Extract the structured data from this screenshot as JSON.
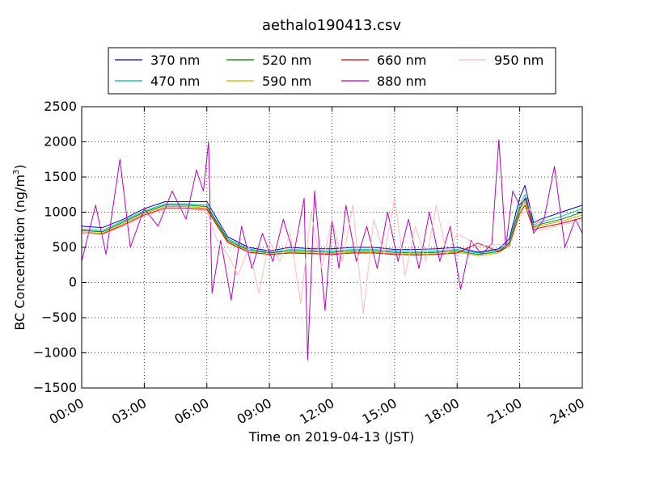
{
  "chart_data": {
    "type": "line",
    "title": "aethalo190413.csv",
    "xlabel": "Time on 2019-04-13 (JST)",
    "ylabel": "BC Concentration (ng/m",
    "ylabel_sup": "3",
    "ylabel_suffix": ")",
    "xlim": [
      "00:00",
      "24:00"
    ],
    "ylim": [
      -1500,
      2500
    ],
    "xticks": [
      "00:00",
      "03:00",
      "06:00",
      "09:00",
      "12:00",
      "15:00",
      "18:00",
      "21:00",
      "24:00"
    ],
    "yticks": [
      "2500",
      "2000",
      "1500",
      "1000",
      "500",
      "0",
      "−500",
      "−1000",
      "−1500"
    ],
    "grid": true,
    "legend_placement": "top-center",
    "series": [
      {
        "name": "370 nm",
        "color": "#0000cc",
        "x": [
          "00:00",
          "01:00",
          "02:00",
          "03:00",
          "04:00",
          "05:00",
          "06:00",
          "07:00",
          "08:00",
          "09:00",
          "10:00",
          "11:00",
          "12:00",
          "13:00",
          "14:00",
          "15:00",
          "16:00",
          "17:00",
          "18:00",
          "19:00",
          "20:00",
          "20:30",
          "21:00",
          "21:15",
          "21:40",
          "22:00",
          "23:00",
          "24:00"
        ],
        "values": [
          800,
          780,
          900,
          1050,
          1150,
          1150,
          1150,
          650,
          500,
          450,
          500,
          480,
          480,
          500,
          500,
          470,
          470,
          480,
          500,
          430,
          480,
          620,
          1200,
          1380,
          850,
          900,
          1000,
          1100
        ]
      },
      {
        "name": "470 nm",
        "color": "#00bbaa",
        "x": [
          "00:00",
          "01:00",
          "02:00",
          "03:00",
          "04:00",
          "05:00",
          "06:00",
          "07:00",
          "08:00",
          "09:00",
          "10:00",
          "11:00",
          "12:00",
          "13:00",
          "14:00",
          "15:00",
          "16:00",
          "17:00",
          "18:00",
          "19:00",
          "20:00",
          "20:30",
          "21:00",
          "21:15",
          "21:40",
          "22:00",
          "23:00",
          "24:00"
        ],
        "values": [
          760,
          740,
          880,
          1020,
          1120,
          1120,
          1100,
          620,
          480,
          430,
          470,
          460,
          450,
          470,
          470,
          450,
          440,
          450,
          470,
          420,
          460,
          580,
          1100,
          1250,
          820,
          860,
          940,
          1050
        ]
      },
      {
        "name": "520 nm",
        "color": "#007700",
        "x": [
          "00:00",
          "01:00",
          "02:00",
          "03:00",
          "04:00",
          "05:00",
          "06:00",
          "07:00",
          "08:00",
          "09:00",
          "10:00",
          "11:00",
          "12:00",
          "13:00",
          "14:00",
          "15:00",
          "16:00",
          "17:00",
          "18:00",
          "19:00",
          "20:00",
          "20:30",
          "21:00",
          "21:15",
          "21:40",
          "22:00",
          "23:00",
          "24:00"
        ],
        "values": [
          740,
          720,
          860,
          1000,
          1100,
          1100,
          1080,
          600,
          460,
          420,
          450,
          440,
          430,
          450,
          450,
          430,
          420,
          430,
          450,
          400,
          440,
          560,
          1050,
          1200,
          790,
          830,
          900,
          1000
        ]
      },
      {
        "name": "590 nm",
        "color": "#bbbb00",
        "x": [
          "00:00",
          "01:00",
          "02:00",
          "03:00",
          "04:00",
          "05:00",
          "06:00",
          "07:00",
          "08:00",
          "09:00",
          "10:00",
          "11:00",
          "12:00",
          "13:00",
          "14:00",
          "15:00",
          "16:00",
          "17:00",
          "18:00",
          "19:00",
          "20:00",
          "20:30",
          "21:00",
          "21:15",
          "21:40",
          "22:00",
          "23:00",
          "24:00"
        ],
        "values": [
          720,
          700,
          840,
          980,
          1080,
          1080,
          1060,
          580,
          440,
          400,
          430,
          420,
          410,
          430,
          430,
          410,
          400,
          410,
          430,
          380,
          420,
          540,
          1020,
          1150,
          770,
          810,
          870,
          960
        ]
      },
      {
        "name": "660 nm",
        "color": "#dd0000",
        "x": [
          "00:00",
          "01:00",
          "02:00",
          "03:00",
          "04:00",
          "05:00",
          "06:00",
          "07:00",
          "08:00",
          "09:00",
          "10:00",
          "11:00",
          "12:00",
          "13:00",
          "14:00",
          "15:00",
          "16:00",
          "17:00",
          "18:00",
          "19:00",
          "20:00",
          "20:30",
          "21:00",
          "21:15",
          "21:40",
          "22:00",
          "23:00",
          "24:00"
        ],
        "values": [
          700,
          690,
          820,
          960,
          1060,
          1060,
          1040,
          570,
          430,
          400,
          420,
          410,
          400,
          420,
          420,
          400,
          390,
          400,
          420,
          560,
          440,
          520,
          980,
          1100,
          750,
          780,
          840,
          920
        ]
      },
      {
        "name": "880 nm",
        "color": "#bb00bb",
        "x": [
          "00:00",
          "00:40",
          "01:10",
          "01:50",
          "02:20",
          "03:00",
          "03:40",
          "04:20",
          "05:00",
          "05:30",
          "05:50",
          "06:05",
          "06:15",
          "06:40",
          "07:10",
          "07:40",
          "08:10",
          "08:40",
          "09:10",
          "09:40",
          "10:10",
          "10:40",
          "10:50",
          "11:10",
          "11:40",
          "12:00",
          "12:20",
          "12:40",
          "13:10",
          "13:40",
          "14:10",
          "14:40",
          "15:10",
          "15:40",
          "16:10",
          "16:40",
          "17:10",
          "17:40",
          "18:10",
          "18:40",
          "19:10",
          "19:40",
          "20:00",
          "20:20",
          "20:40",
          "21:00",
          "21:20",
          "21:40",
          "22:10",
          "22:40",
          "23:10",
          "23:40",
          "24:00"
        ],
        "values": [
          300,
          1100,
          400,
          1750,
          500,
          1050,
          800,
          1300,
          900,
          1600,
          1300,
          2000,
          -150,
          600,
          -250,
          800,
          200,
          700,
          300,
          900,
          400,
          1200,
          -1100,
          1300,
          -400,
          900,
          200,
          1100,
          300,
          800,
          200,
          1000,
          300,
          900,
          200,
          1000,
          300,
          800,
          -100,
          600,
          400,
          550,
          2030,
          500,
          1300,
          1100,
          1200,
          700,
          900,
          1650,
          500,
          900,
          700
        ]
      },
      {
        "name": "950 nm",
        "color": "#ffbbbb",
        "x": [
          "00:00",
          "01:00",
          "02:00",
          "03:00",
          "04:00",
          "05:00",
          "06:00",
          "06:30",
          "07:00",
          "07:30",
          "08:00",
          "08:30",
          "09:00",
          "09:30",
          "10:00",
          "10:30",
          "11:00",
          "11:30",
          "12:00",
          "12:30",
          "13:00",
          "13:30",
          "14:00",
          "14:30",
          "15:00",
          "15:30",
          "16:00",
          "16:30",
          "17:00",
          "17:30",
          "18:00",
          "19:00",
          "20:00",
          "20:30",
          "21:00",
          "21:30",
          "22:00",
          "23:00",
          "24:00"
        ],
        "values": [
          700,
          680,
          800,
          940,
          1040,
          1040,
          1020,
          600,
          400,
          100,
          500,
          -150,
          600,
          300,
          700,
          -300,
          1000,
          200,
          900,
          300,
          1100,
          -450,
          900,
          400,
          1200,
          100,
          800,
          300,
          1100,
          400,
          700,
          520,
          540,
          500,
          950,
          1050,
          740,
          820,
          880
        ]
      }
    ]
  }
}
